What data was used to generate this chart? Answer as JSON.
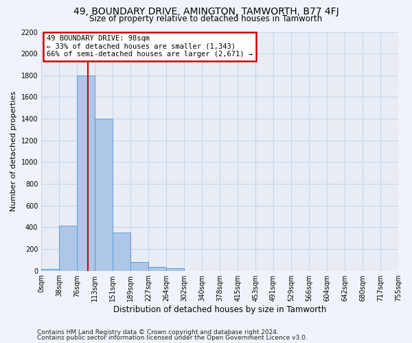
{
  "title": "49, BOUNDARY DRIVE, AMINGTON, TAMWORTH, B77 4FJ",
  "subtitle": "Size of property relative to detached houses in Tamworth",
  "xlabel": "Distribution of detached houses by size in Tamworth",
  "ylabel": "Number of detached properties",
  "bin_labels": [
    "0sqm",
    "38sqm",
    "76sqm",
    "113sqm",
    "151sqm",
    "189sqm",
    "227sqm",
    "264sqm",
    "302sqm",
    "340sqm",
    "378sqm",
    "415sqm",
    "453sqm",
    "491sqm",
    "529sqm",
    "566sqm",
    "604sqm",
    "642sqm",
    "680sqm",
    "717sqm",
    "755sqm"
  ],
  "bar_values": [
    15,
    415,
    1800,
    1400,
    350,
    80,
    33,
    20,
    0,
    0,
    0,
    0,
    0,
    0,
    0,
    0,
    0,
    0,
    0,
    0
  ],
  "bar_color": "#aec6e8",
  "bar_edge_color": "#5a9fd4",
  "vline_color": "#cc0000",
  "annotation_text": "49 BOUNDARY DRIVE: 98sqm\n← 33% of detached houses are smaller (1,343)\n66% of semi-detached houses are larger (2,671) →",
  "annotation_box_facecolor": "#ffffff",
  "annotation_box_edgecolor": "#cc0000",
  "ylim": [
    0,
    2200
  ],
  "yticks": [
    0,
    200,
    400,
    600,
    800,
    1000,
    1200,
    1400,
    1600,
    1800,
    2000,
    2200
  ],
  "grid_color": "#c8d4e8",
  "plot_bg_color": "#e8edf5",
  "fig_bg_color": "#f0f4fa",
  "footer1": "Contains HM Land Registry data © Crown copyright and database right 2024.",
  "footer2": "Contains public sector information licensed under the Open Government Licence v3.0."
}
